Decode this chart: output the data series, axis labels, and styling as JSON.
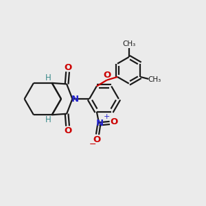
{
  "background_color": "#ebebeb",
  "bond_color": "#1a1a1a",
  "bond_width": 1.6,
  "atom_colors": {
    "O": "#cc0000",
    "N_blue": "#2222cc",
    "H": "#3a8a8a",
    "C": "#1a1a1a"
  },
  "figsize": [
    3.0,
    3.0
  ],
  "dpi": 100,
  "xlim": [
    0,
    10
  ],
  "ylim": [
    0,
    10
  ]
}
